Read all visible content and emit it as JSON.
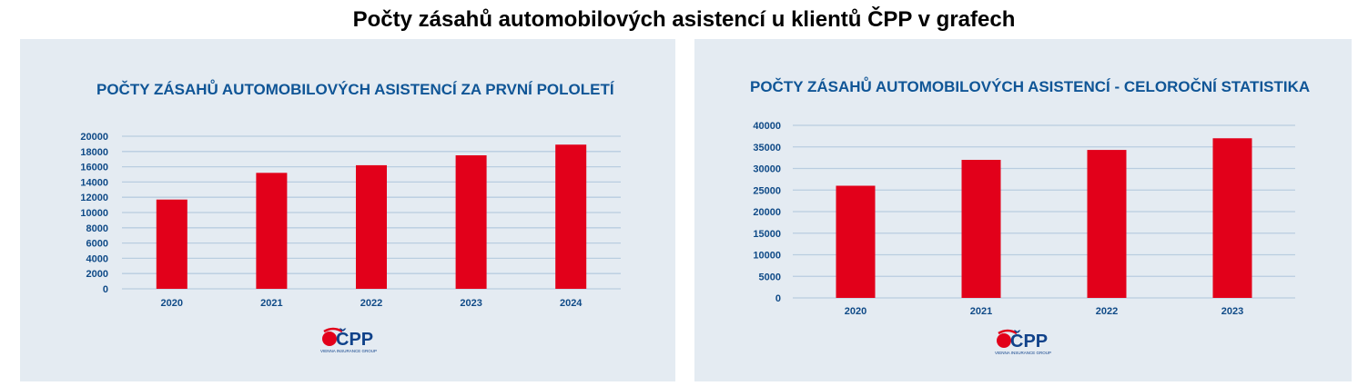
{
  "page_title": "Počty zásahů automobilových asistencí u klientů ČPP v grafech",
  "colors": {
    "bar": "#e2001a",
    "panel_bg": "#e4ebf2",
    "title": "#0f5596",
    "axis_text": "#0f4a87",
    "grid": "#b9cde0"
  },
  "logo": {
    "text": "ČPP",
    "subtext": "VIENNA INSURANCE GROUP"
  },
  "chart_data": [
    {
      "type": "bar",
      "title": "POČTY ZÁSAHŮ AUTOMOBILOVÝCH ASISTENCÍ ZA PRVNÍ POLOLETÍ",
      "categories": [
        "2020",
        "2021",
        "2022",
        "2023",
        "2024"
      ],
      "values": [
        11700,
        15200,
        16200,
        17500,
        18900
      ],
      "yticks": [
        0,
        2000,
        4000,
        6000,
        8000,
        10000,
        12000,
        14000,
        16000,
        18000,
        20000
      ],
      "ylim": [
        0,
        20000
      ],
      "xlabel": "",
      "ylabel": "",
      "grid": true
    },
    {
      "type": "bar",
      "title": "POČTY ZÁSAHŮ AUTOMOBILOVÝCH ASISTENCÍ - CELOROČNÍ STATISTIKA",
      "categories": [
        "2020",
        "2021",
        "2022",
        "2023"
      ],
      "values": [
        26000,
        32000,
        34300,
        37000
      ],
      "yticks": [
        0,
        5000,
        10000,
        15000,
        20000,
        25000,
        30000,
        35000,
        40000
      ],
      "ylim": [
        0,
        40000
      ],
      "xlabel": "",
      "ylabel": "",
      "grid": true
    }
  ]
}
